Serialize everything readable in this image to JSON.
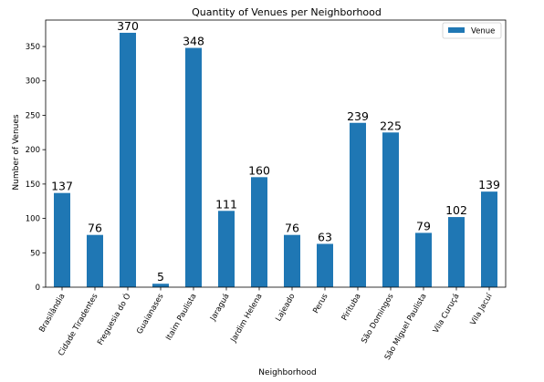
{
  "chart_data": {
    "type": "bar",
    "title": "Quantity of Venues per Neighborhood",
    "xlabel": "Neighborhood",
    "ylabel": "Number of Venues",
    "categories": [
      "Brasilândia",
      "Cidade Tiradentes",
      "Freguesia do Ó",
      "Guaianases",
      "Itaim Paulista",
      "Jaraguá",
      "Jardim Helena",
      "Lajeado",
      "Perus",
      "Pirituba",
      "São Domingos",
      "São Miguel Paulista",
      "Vila Curuçá",
      "Vila Jacuí"
    ],
    "series": [
      {
        "name": "Venue",
        "values": [
          137,
          76,
          370,
          5,
          348,
          111,
          160,
          76,
          63,
          239,
          225,
          79,
          102,
          139
        ],
        "color": "#1f77b4"
      }
    ],
    "ylim": [
      0,
      388.5
    ],
    "yticks": [
      0,
      50,
      100,
      150,
      200,
      250,
      300,
      350
    ],
    "grid": false,
    "legend_position": "top-right"
  }
}
